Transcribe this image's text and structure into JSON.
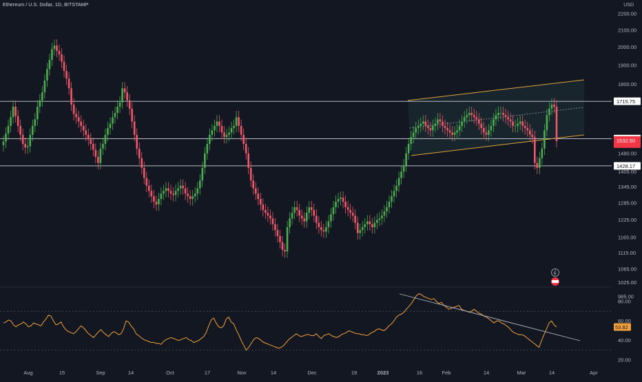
{
  "header": {
    "title": "Ethereum / U.S. Dollar, 1D, BITSTAMP",
    "currency": "USD"
  },
  "colors": {
    "background": "#131722",
    "up": "#26a69a",
    "down": "#ef5350",
    "green_candle": "#4caf50",
    "red_candle": "#f05a6b",
    "channel": "#e0a43a",
    "rsi_line": "#f2a13a",
    "level_line": "#d1d4dc",
    "last_price_bg": "#f23645",
    "rsi_badge_bg": "#f2a13a"
  },
  "chart_data": [
    {
      "type": "candlestick",
      "title": "Ethereum / U.S. Dollar, 1D, BITSTAMP",
      "ylabel": "USD",
      "ylim": [
        960,
        2230
      ],
      "yscale": "log",
      "y_ticks": [
        "2200.00",
        "2100.00",
        "2000.00",
        "1900.00",
        "1800.00",
        "1480.00",
        "1405.00",
        "1345.00",
        "1285.00",
        "1225.00",
        "1165.00",
        "1115.00",
        "1065.00",
        "1025.00",
        "985.00"
      ],
      "x_ticks": [
        "Aug",
        "15",
        "Sep",
        "14",
        "Oct",
        "17",
        "Nov",
        "14",
        "Dec",
        "19",
        "2023",
        "16",
        "Feb",
        "14",
        "Mar",
        "14",
        "Apr"
      ],
      "horizontal_levels": [
        "1715.75",
        "1543.08",
        "1428.17"
      ],
      "last_price": "1532.50",
      "closes": [
        1530,
        1565,
        1600,
        1640,
        1690,
        1645,
        1600,
        1560,
        1520,
        1505,
        1510,
        1560,
        1600,
        1630,
        1690,
        1720,
        1760,
        1820,
        1880,
        1930,
        1990,
        2010,
        1980,
        1960,
        1920,
        1870,
        1830,
        1780,
        1700,
        1655,
        1640,
        1620,
        1600,
        1580,
        1560,
        1540,
        1520,
        1495,
        1465,
        1440,
        1500,
        1520,
        1560,
        1590,
        1610,
        1640,
        1660,
        1690,
        1710,
        1780,
        1760,
        1720,
        1680,
        1620,
        1560,
        1500,
        1460,
        1420,
        1380,
        1350,
        1330,
        1310,
        1290,
        1280,
        1300,
        1320,
        1330,
        1340,
        1330,
        1320,
        1315,
        1330,
        1340,
        1350,
        1340,
        1320,
        1310,
        1300,
        1310,
        1320,
        1340,
        1370,
        1420,
        1480,
        1520,
        1560,
        1580,
        1600,
        1620,
        1600,
        1570,
        1550,
        1560,
        1570,
        1590,
        1600,
        1640,
        1600,
        1560,
        1520,
        1480,
        1420,
        1370,
        1340,
        1320,
        1300,
        1280,
        1260,
        1250,
        1240,
        1230,
        1210,
        1190,
        1170,
        1150,
        1125,
        1120,
        1200,
        1230,
        1250,
        1270,
        1260,
        1240,
        1230,
        1220,
        1250,
        1270,
        1260,
        1240,
        1215,
        1200,
        1190,
        1185,
        1200,
        1220,
        1245,
        1270,
        1290,
        1300,
        1305,
        1290,
        1270,
        1260,
        1250,
        1240,
        1215,
        1180,
        1190,
        1200,
        1210,
        1220,
        1210,
        1200,
        1215,
        1225,
        1230,
        1240,
        1255,
        1270,
        1290,
        1310,
        1330,
        1350,
        1380,
        1405,
        1430,
        1480,
        1520,
        1550,
        1570,
        1590,
        1600,
        1610,
        1620,
        1600,
        1590,
        1580,
        1600,
        1610,
        1630,
        1620,
        1600,
        1590,
        1580,
        1570,
        1560,
        1570,
        1580,
        1600,
        1620,
        1640,
        1650,
        1660,
        1650,
        1640,
        1630,
        1610,
        1590,
        1570,
        1560,
        1580,
        1600,
        1630,
        1650,
        1660,
        1660,
        1650,
        1640,
        1630,
        1620,
        1600,
        1600,
        1610,
        1620,
        1600,
        1590,
        1580,
        1560,
        1550,
        1440,
        1420,
        1460,
        1500,
        1580,
        1650,
        1680,
        1700,
        1690,
        1532
      ]
    },
    {
      "type": "line",
      "name": "RSI",
      "ylim": [
        15,
        92
      ],
      "y_ticks": [
        "80.00",
        "60.00",
        "40.00",
        "20.00"
      ],
      "last_value": "53.82",
      "values": [
        58,
        59,
        61,
        60,
        56,
        54,
        56,
        57,
        59,
        57,
        54,
        55,
        58,
        57,
        56,
        55,
        59,
        62,
        66,
        65,
        60,
        56,
        57,
        59,
        54,
        51,
        49,
        48,
        47,
        49,
        52,
        55,
        53,
        50,
        47,
        45,
        43,
        46,
        49,
        51,
        48,
        46,
        44,
        47,
        49,
        48,
        46,
        47,
        52,
        60,
        59,
        55,
        52,
        47,
        45,
        43,
        41,
        40,
        39,
        38,
        38,
        37,
        37,
        36,
        39,
        41,
        42,
        43,
        42,
        41,
        40,
        41,
        42,
        43,
        41,
        40,
        38,
        39,
        40,
        42,
        44,
        48,
        55,
        61,
        63,
        58,
        54,
        53,
        55,
        62,
        64,
        59,
        57,
        51,
        46,
        40,
        35,
        30,
        33,
        37,
        41,
        43,
        42,
        40,
        38,
        37,
        36,
        35,
        34,
        33,
        32,
        33,
        35,
        38,
        41,
        43,
        45,
        47,
        45,
        44,
        45,
        46,
        46,
        45,
        45,
        47,
        44,
        42,
        45,
        46,
        47,
        45,
        44,
        43,
        44,
        46,
        47,
        48,
        50,
        49,
        48,
        47,
        47,
        46,
        46,
        45,
        46,
        48,
        49,
        51,
        52,
        51,
        50,
        52,
        55,
        57,
        60,
        64,
        66,
        67,
        69,
        72,
        75,
        78,
        82,
        86,
        88,
        87,
        85,
        84,
        83,
        82,
        83,
        80,
        78,
        79,
        76,
        74,
        72,
        73,
        74,
        75,
        76,
        72,
        71,
        70,
        69,
        70,
        72,
        70,
        68,
        67,
        65,
        64,
        62,
        60,
        58,
        60,
        60,
        58,
        57,
        55,
        53,
        50,
        48,
        47,
        46,
        46,
        45,
        43,
        41,
        39,
        37,
        35,
        33,
        40,
        46,
        52,
        58,
        60,
        56,
        53.82
      ]
    }
  ]
}
